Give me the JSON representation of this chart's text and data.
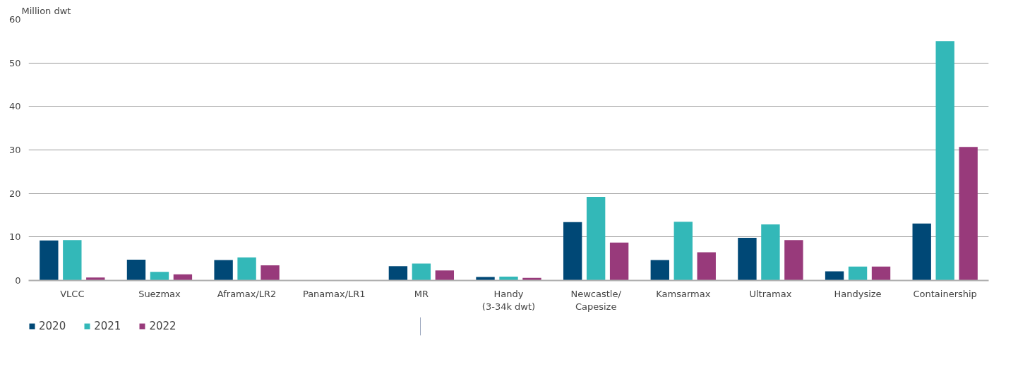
{
  "chart_data": {
    "type": "bar",
    "ylabel": "Million dwt",
    "categories": [
      "VLCC",
      "Suezmax",
      "Aframax/LR2",
      "Panamax/LR1",
      "MR",
      "Handy\n(3-34k dwt)",
      "Newcastle/\nCapesize",
      "Kamsarmax",
      "Ultramax",
      "Handysize",
      "Containership"
    ],
    "series": [
      {
        "name": "2020",
        "color": "#004876",
        "values": [
          9.2,
          4.8,
          4.7,
          0,
          3.3,
          0.8,
          13.4,
          4.7,
          9.8,
          2.1,
          13.1
        ]
      },
      {
        "name": "2021",
        "color": "#33b8b8",
        "values": [
          9.3,
          2.0,
          5.3,
          0,
          3.9,
          0.9,
          19.2,
          13.5,
          12.9,
          3.2,
          55.0
        ]
      },
      {
        "name": "2022",
        "color": "#983a7b",
        "values": [
          0.7,
          1.4,
          3.5,
          0,
          2.3,
          0.6,
          8.7,
          6.5,
          9.3,
          3.2,
          30.7
        ]
      }
    ],
    "ylim": [
      0,
      60
    ],
    "yticks": [
      0,
      10,
      20,
      30,
      40,
      50,
      60
    ],
    "grid": "y",
    "legend": "bottom left"
  }
}
